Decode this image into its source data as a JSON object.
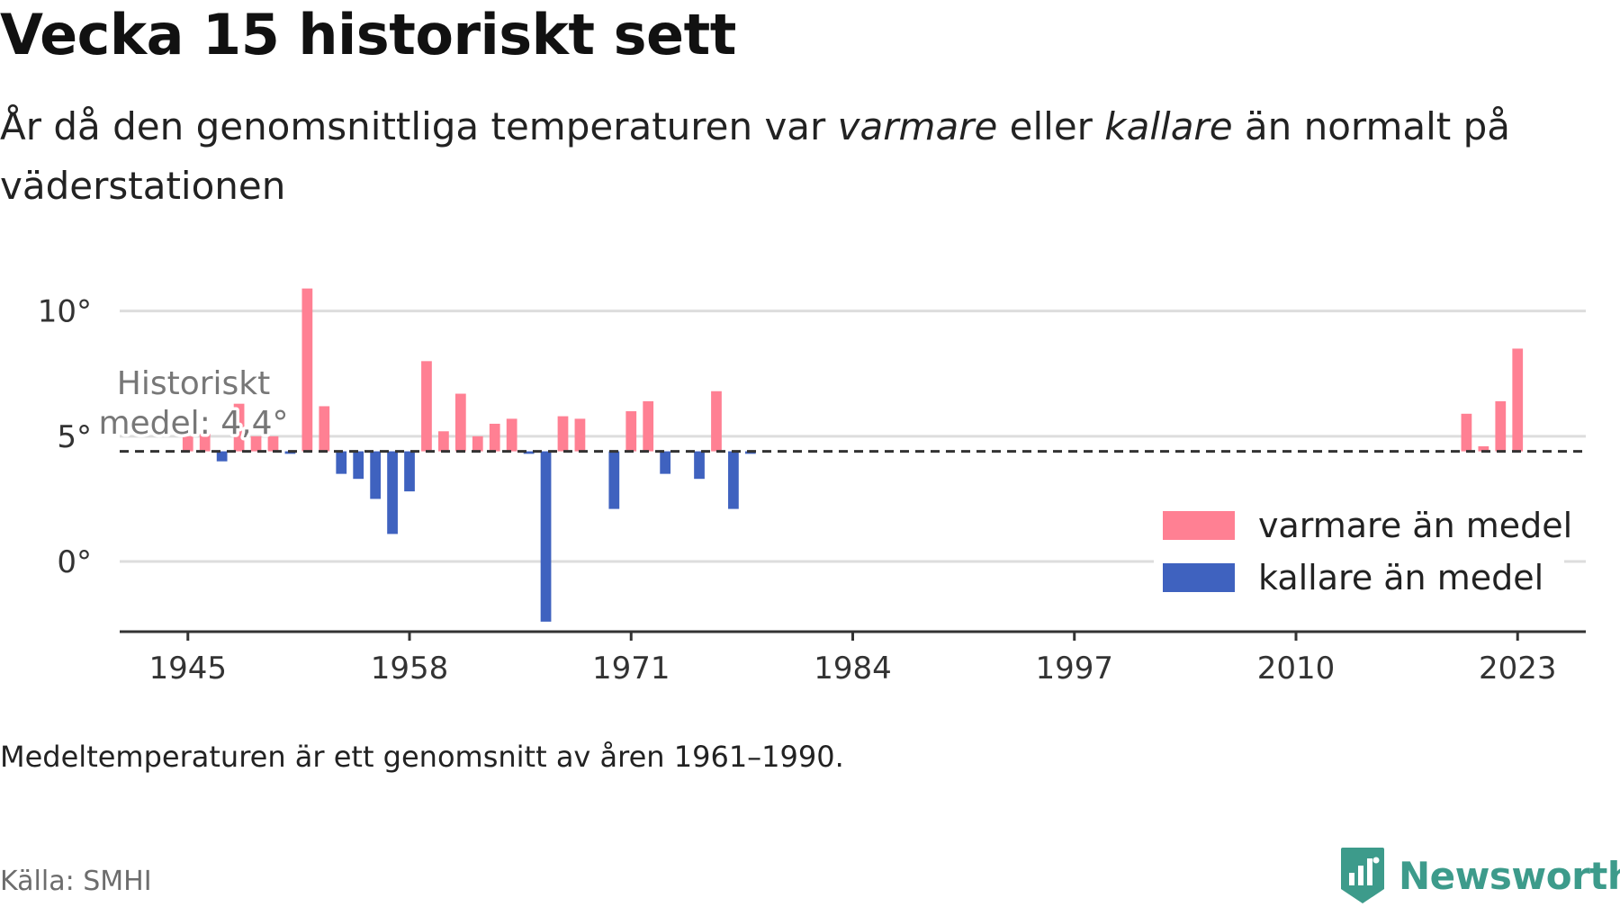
{
  "title": "Vecka 15 historiskt sett",
  "subtitle": {
    "part1": "År då den genomsnittliga temperaturen var ",
    "warm": "varmare",
    "part2": " eller ",
    "cold": "kallare",
    "part3": " än normalt på väderstationen"
  },
  "footnote": "Medeltemperaturen är ett genomsnitt av åren 1961–1990.",
  "source": "Källa: SMHI",
  "brand": {
    "name": "Newsworthy",
    "color": "#3d9b8b",
    "icon": "newsworthy-logo-icon"
  },
  "chart_data": {
    "type": "bar",
    "xlim": [
      1941,
      2027
    ],
    "ylim": [
      -2.8,
      12
    ],
    "x_ticks": [
      1945,
      1958,
      1971,
      1984,
      1997,
      2010,
      2023
    ],
    "y_ticks": [
      {
        "value": 0,
        "label": "0°"
      },
      {
        "value": 5,
        "label": "5°"
      },
      {
        "value": 10,
        "label": "10°"
      }
    ],
    "grid": true,
    "baseline": 4.4,
    "baseline_label": [
      "Historiskt",
      "medel: 4,4°"
    ],
    "colors": {
      "warm": "#ff8093",
      "cold": "#3f62bf",
      "baseline": "#333333",
      "grid": "#dddddd"
    },
    "legend": {
      "position": "right",
      "items": [
        {
          "key": "warm",
          "label": "varmare än medel"
        },
        {
          "key": "cold",
          "label": "kallare än medel"
        }
      ]
    },
    "data": [
      {
        "year": 1945,
        "value": 5.0
      },
      {
        "year": 1946,
        "value": 5.1
      },
      {
        "year": 1947,
        "value": 4.0
      },
      {
        "year": 1948,
        "value": 6.3
      },
      {
        "year": 1949,
        "value": 5.0
      },
      {
        "year": 1950,
        "value": 5.0
      },
      {
        "year": 1951,
        "value": 4.3
      },
      {
        "year": 1952,
        "value": 10.9
      },
      {
        "year": 1953,
        "value": 6.2
      },
      {
        "year": 1954,
        "value": 3.5
      },
      {
        "year": 1955,
        "value": 3.3
      },
      {
        "year": 1956,
        "value": 2.5
      },
      {
        "year": 1957,
        "value": 1.1
      },
      {
        "year": 1958,
        "value": 2.8
      },
      {
        "year": 1959,
        "value": 8.0
      },
      {
        "year": 1960,
        "value": 5.2
      },
      {
        "year": 1961,
        "value": 6.7
      },
      {
        "year": 1962,
        "value": 5.0
      },
      {
        "year": 1963,
        "value": 5.5
      },
      {
        "year": 1964,
        "value": 5.7
      },
      {
        "year": 1965,
        "value": 4.3
      },
      {
        "year": 1966,
        "value": -2.4
      },
      {
        "year": 1967,
        "value": 5.8
      },
      {
        "year": 1968,
        "value": 5.7
      },
      {
        "year": 1970,
        "value": 2.1
      },
      {
        "year": 1971,
        "value": 6.0
      },
      {
        "year": 1972,
        "value": 6.4
      },
      {
        "year": 1973,
        "value": 3.5
      },
      {
        "year": 1975,
        "value": 3.3
      },
      {
        "year": 1976,
        "value": 6.8
      },
      {
        "year": 1977,
        "value": 2.1
      },
      {
        "year": 1978,
        "value": 4.3
      },
      {
        "year": 2020,
        "value": 5.9
      },
      {
        "year": 2021,
        "value": 4.6
      },
      {
        "year": 2022,
        "value": 6.4
      },
      {
        "year": 2023,
        "value": 8.5
      }
    ]
  }
}
